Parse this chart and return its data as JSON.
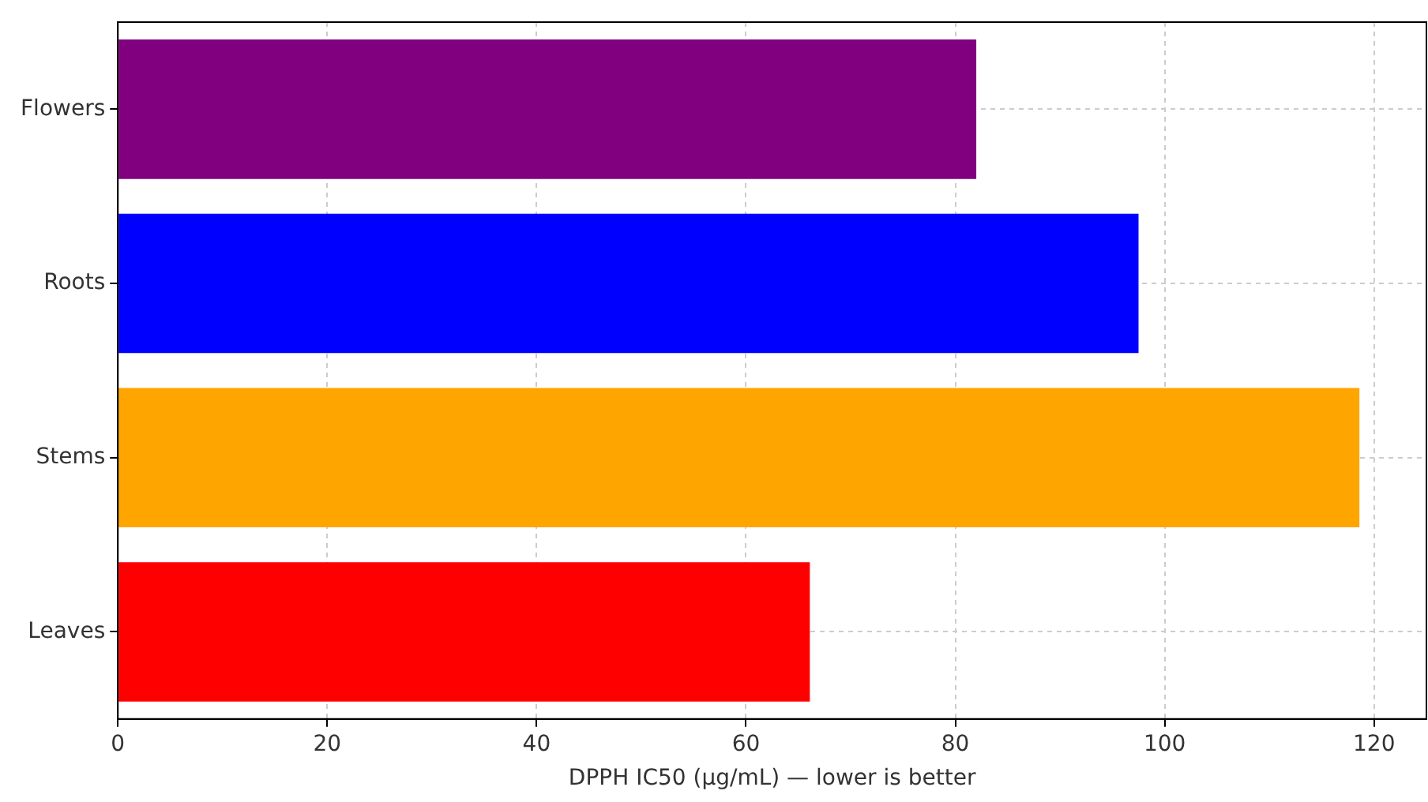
{
  "chart_data": {
    "type": "bar",
    "orientation": "horizontal",
    "xlabel": "DPPH IC50 (µg/mL) — lower is better",
    "categories": [
      "Flowers",
      "Roots",
      "Stems",
      "Leaves"
    ],
    "values": [
      82,
      97.5,
      118.6,
      66.1
    ],
    "colors": [
      "#800080",
      "#0000ff",
      "#ffa500",
      "#ff0000"
    ],
    "xlim": [
      0,
      125
    ],
    "xticks": [
      0,
      20,
      40,
      60,
      80,
      100,
      120
    ],
    "grid": true,
    "legend": false
  }
}
